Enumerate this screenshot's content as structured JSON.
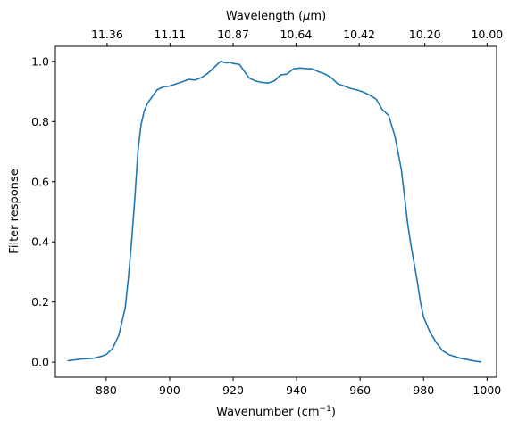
{
  "chart_data": {
    "type": "line",
    "xlabel": "Wavenumber (cm",
    "xlabel_sup": "−1",
    "xlabel_end": ")",
    "ylabel": "Filter response",
    "top_xlabel": "Wavelength (",
    "top_xlabel_mu": "μ",
    "top_xlabel_end": "m)",
    "xlim": [
      864,
      1003
    ],
    "ylim": [
      -0.05,
      1.05
    ],
    "xticks": [
      880,
      900,
      920,
      940,
      960,
      980,
      1000
    ],
    "yticks": [
      0.0,
      0.2,
      0.4,
      0.6,
      0.8,
      1.0
    ],
    "ytick_labels": [
      "0.0",
      "0.2",
      "0.4",
      "0.6",
      "0.8",
      "1.0"
    ],
    "top_ticks": [
      {
        "label": "11.36",
        "x": 880.3
      },
      {
        "label": "11.11",
        "x": 900.1
      },
      {
        "label": "10.87",
        "x": 920.0
      },
      {
        "label": "10.64",
        "x": 939.8
      },
      {
        "label": "10.42",
        "x": 959.7
      },
      {
        "label": "10.20",
        "x": 980.4
      },
      {
        "label": "10.00",
        "x": 1000.0
      }
    ],
    "line_color": "#1f77b4",
    "grid": false,
    "series": [
      {
        "x": [
          868,
          872,
          876,
          878,
          880,
          882,
          884,
          886,
          887,
          888,
          889,
          890,
          891,
          892,
          893,
          894,
          896,
          898,
          900,
          902,
          904,
          906,
          908,
          910,
          912,
          914,
          916,
          918,
          919,
          920,
          922,
          923,
          925,
          927,
          929,
          931,
          933,
          935,
          937,
          939,
          941,
          943,
          945,
          947,
          949,
          951,
          953,
          955,
          957,
          959,
          961,
          963,
          965,
          967,
          969,
          971,
          973,
          974,
          975,
          976,
          977,
          978,
          979,
          980,
          982,
          984,
          986,
          988,
          990,
          992,
          994,
          996,
          998
        ],
        "y": [
          0.005,
          0.01,
          0.013,
          0.018,
          0.025,
          0.045,
          0.09,
          0.18,
          0.28,
          0.4,
          0.54,
          0.7,
          0.79,
          0.835,
          0.86,
          0.875,
          0.905,
          0.915,
          0.918,
          0.925,
          0.932,
          0.94,
          0.938,
          0.946,
          0.96,
          0.98,
          1.0,
          0.995,
          0.997,
          0.993,
          0.99,
          0.975,
          0.945,
          0.935,
          0.93,
          0.928,
          0.935,
          0.955,
          0.958,
          0.975,
          0.978,
          0.976,
          0.975,
          0.965,
          0.958,
          0.945,
          0.925,
          0.918,
          0.91,
          0.905,
          0.898,
          0.888,
          0.875,
          0.84,
          0.82,
          0.75,
          0.64,
          0.55,
          0.46,
          0.39,
          0.33,
          0.27,
          0.2,
          0.15,
          0.1,
          0.065,
          0.038,
          0.025,
          0.018,
          0.012,
          0.008,
          0.004,
          0.001
        ]
      }
    ]
  }
}
